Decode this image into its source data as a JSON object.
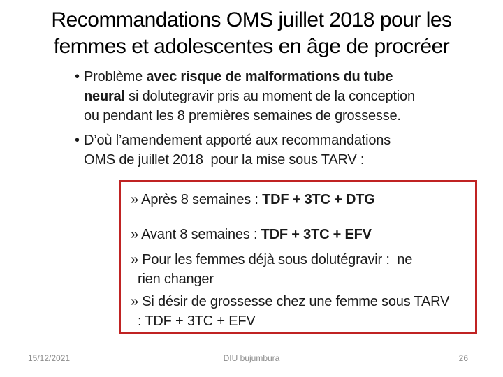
{
  "slide_title": {
    "lines": [
      "Recommandations OMS juillet 2018 pour les",
      "femmes et adolescentes en âge de procréer"
    ]
  },
  "bullets": [
    {
      "marker": "•",
      "lines": [
        [
          {
            "t": "Problème ",
            "b": 0
          },
          {
            "t": "avec risque de malformations du tube",
            "b": 1
          }
        ],
        [
          {
            "t": "neural",
            "b": 1
          },
          {
            "t": " si dolutegravir pris au moment de la conception",
            "b": 0
          }
        ],
        [
          {
            "t": "ou pendant les 8 premières semaines de grossesse.",
            "b": 0
          }
        ]
      ]
    },
    {
      "marker": "•",
      "lines": [
        [
          {
            "t": "D’où l’amendement apporté aux recommandations",
            "b": 0
          }
        ],
        [
          {
            "t": "OMS de juillet 2018  pour la mise sous TARV :",
            "b": 0
          }
        ]
      ]
    }
  ],
  "box": {
    "border_color": "#c02323",
    "items": [
      {
        "lines": [
          [
            {
              "t": "» Après 8 semaines : ",
              "b": 0
            },
            {
              "t": "TDF + 3TC + DTG",
              "b": 1
            }
          ]
        ]
      },
      {
        "lines": [
          [
            {
              "t": "» Avant 8 semaines : ",
              "b": 0
            },
            {
              "t": "TDF + 3TC + EFV",
              "b": 1
            }
          ]
        ]
      },
      {
        "lines": [
          [
            {
              "t": "» Pour les femmes déjà sous dolutégravir :  ne",
              "b": 0
            }
          ],
          [
            {
              "t": "rien changer",
              "b": 0
            }
          ]
        ]
      },
      {
        "lines": [
          [
            {
              "t": "» Si désir de grossesse chez une femme sous TARV",
              "b": 0
            }
          ],
          [
            {
              "t": ": TDF + 3TC + EFV",
              "b": 0
            }
          ]
        ]
      }
    ]
  },
  "footer": {
    "date": "15/12/2021",
    "venue": "DIU bujumbura",
    "page": "26"
  },
  "colors": {
    "background": "#ffffff",
    "text": "#1a1a1a",
    "footer_text": "#8c8c8c",
    "box_border": "#c02323"
  }
}
